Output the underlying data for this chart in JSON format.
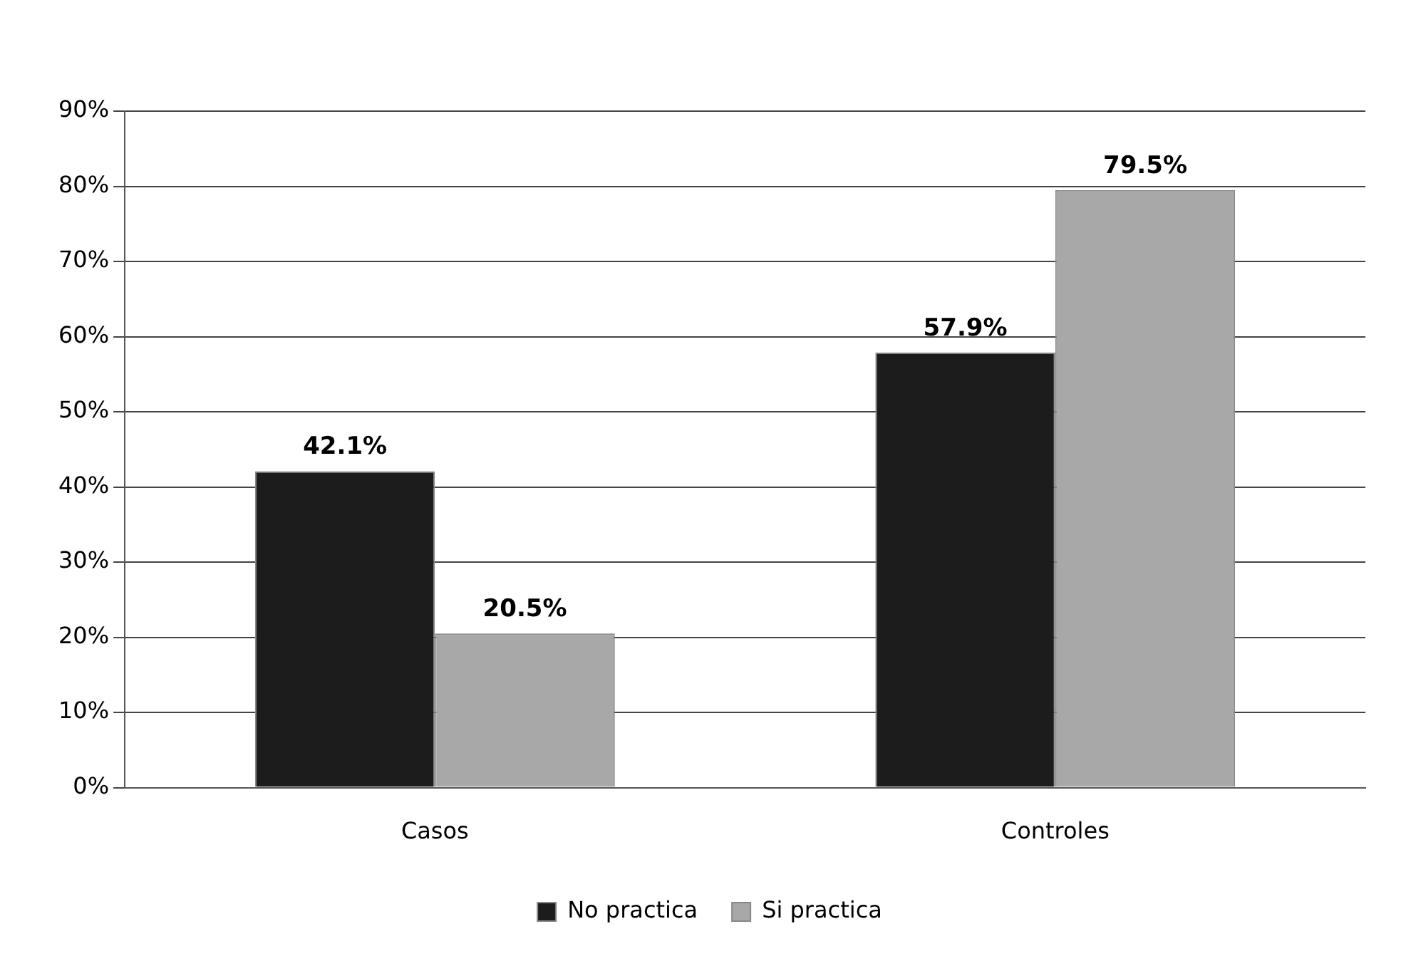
{
  "chart_data": {
    "type": "bar",
    "categories": [
      "Casos",
      "Controles"
    ],
    "series": [
      {
        "name": "No practica",
        "color": "#1c1c1c",
        "values": [
          42.1,
          57.9
        ],
        "value_labels": [
          "42.1%",
          "57.9%"
        ]
      },
      {
        "name": "Si practica",
        "color": "#a8a8a8",
        "values": [
          20.5,
          79.5
        ],
        "value_labels": [
          "20.5%",
          "79.5%"
        ]
      }
    ],
    "ylim": [
      0,
      90
    ],
    "yticks": [
      {
        "value": 0,
        "label": "0%"
      },
      {
        "value": 10,
        "label": "10%"
      },
      {
        "value": 20,
        "label": "20%"
      },
      {
        "value": 30,
        "label": "30%"
      },
      {
        "value": 40,
        "label": "40%"
      },
      {
        "value": 50,
        "label": "50%"
      },
      {
        "value": 60,
        "label": "60%"
      },
      {
        "value": 70,
        "label": "70%"
      },
      {
        "value": 80,
        "label": "80%"
      },
      {
        "value": 90,
        "label": "90%"
      }
    ],
    "grid": "y",
    "legend": "bottom"
  }
}
